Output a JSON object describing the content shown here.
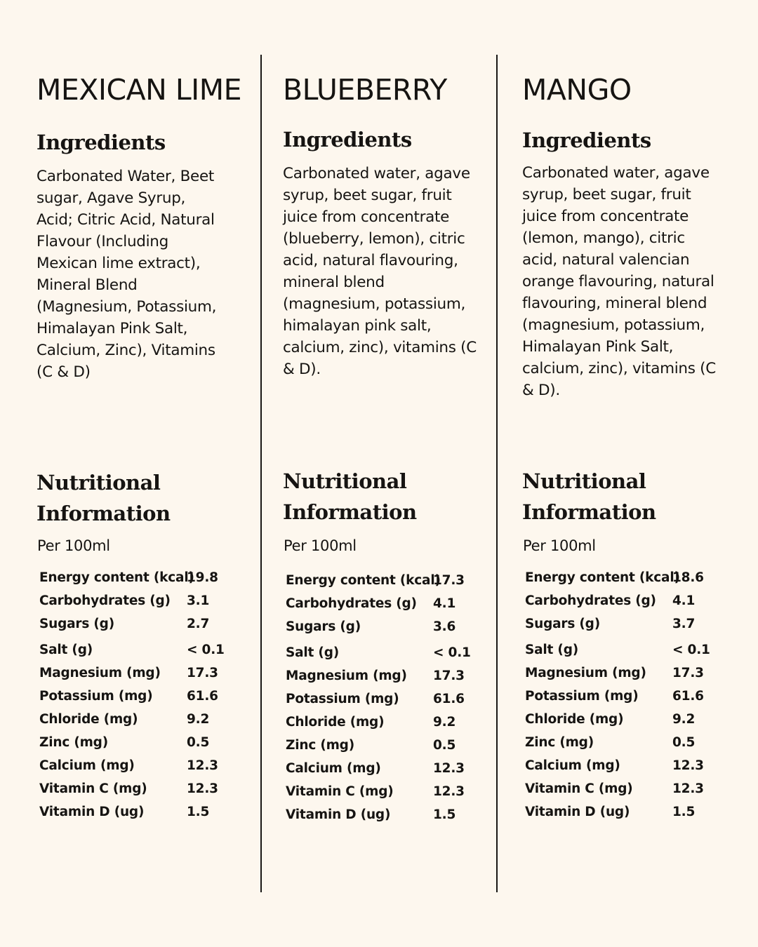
{
  "colors": {
    "background": "#fdf7ee",
    "text": "#161412",
    "divider": "#1a1816"
  },
  "products": [
    {
      "title": "MEXICAN LIME",
      "ingredients_heading": "Ingredients",
      "ingredients_lines": [
        "Carbonated Water, Beet",
        "sugar, Agave Syrup,",
        "Acid; Citric Acid, Natural",
        "Flavour (Including",
        "Mexican lime extract),",
        "Mineral Blend",
        "(Magnesium, Potassium,",
        "Himalayan Pink Salt,",
        "Calcium, Zinc), Vitamins",
        "(C & D)"
      ],
      "nutrition_heading_lines": [
        "Nutritional",
        "Information"
      ],
      "per": "Per 100ml",
      "rows": [
        {
          "label": "Energy content (kcal)",
          "value": "19.8"
        },
        {
          "label": "Carbohydrates (g)",
          "value": "3.1"
        },
        {
          "label": "Sugars (g)",
          "value": "2.7"
        },
        {
          "label": "Salt (g)",
          "value": "< 0.1"
        },
        {
          "label": "Magnesium (mg)",
          "value": "17.3"
        },
        {
          "label": "Potassium (mg)",
          "value": "61.6"
        },
        {
          "label": "Chloride (mg)",
          "value": "9.2"
        },
        {
          "label": "Zinc (mg)",
          "value": "0.5"
        },
        {
          "label": "Calcium (mg)",
          "value": "12.3"
        },
        {
          "label": "Vitamin C (mg)",
          "value": "12.3"
        },
        {
          "label": "Vitamin D (ug)",
          "value": "1.5"
        }
      ]
    },
    {
      "title": "BLUEBERRY",
      "ingredients_heading": "Ingredients",
      "ingredients_lines": [
        "Carbonated water, agave",
        "syrup, beet sugar, fruit",
        "juice from concentrate",
        "(blueberry, lemon), citric",
        "acid, natural flavouring,",
        "mineral blend",
        "(magnesium, potassium,",
        "himalayan pink salt,",
        "calcium, zinc), vitamins (C",
        "& D)."
      ],
      "nutrition_heading_lines": [
        "Nutritional",
        "Information"
      ],
      "per": "Per 100ml",
      "rows": [
        {
          "label": "Energy content (kcal)",
          "value": "17.3"
        },
        {
          "label": "Carbohydrates (g)",
          "value": "4.1"
        },
        {
          "label": "Sugars (g)",
          "value": "3.6"
        },
        {
          "label": "Salt (g)",
          "value": "< 0.1"
        },
        {
          "label": "Magnesium (mg)",
          "value": "17.3"
        },
        {
          "label": "Potassium (mg)",
          "value": "61.6"
        },
        {
          "label": "Chloride (mg)",
          "value": "9.2"
        },
        {
          "label": "Zinc (mg)",
          "value": "0.5"
        },
        {
          "label": "Calcium (mg)",
          "value": "12.3"
        },
        {
          "label": "Vitamin C (mg)",
          "value": "12.3"
        },
        {
          "label": "Vitamin D (ug)",
          "value": "1.5"
        }
      ]
    },
    {
      "title": "MANGO",
      "ingredients_heading": "Ingredients",
      "ingredients_lines": [
        "Carbonated water, agave",
        "syrup, beet sugar, fruit",
        "juice from concentrate",
        "(lemon, mango), citric",
        "acid, natural valencian",
        "orange flavouring, natural",
        "flavouring, mineral blend",
        "(magnesium, potassium,",
        "Himalayan Pink Salt,",
        "calcium, zinc), vitamins (C",
        "& D)."
      ],
      "nutrition_heading_lines": [
        "Nutritional",
        "Information"
      ],
      "per": "Per 100ml",
      "rows": [
        {
          "label": "Energy content (kcal)",
          "value": "18.6"
        },
        {
          "label": "Carbohydrates (g)",
          "value": "4.1"
        },
        {
          "label": "Sugars (g)",
          "value": "3.7"
        },
        {
          "label": "Salt (g)",
          "value": "< 0.1"
        },
        {
          "label": "Magnesium (mg)",
          "value": "17.3"
        },
        {
          "label": "Potassium (mg)",
          "value": "61.6"
        },
        {
          "label": "Chloride (mg)",
          "value": "9.2"
        },
        {
          "label": "Zinc (mg)",
          "value": "0.5"
        },
        {
          "label": "Calcium (mg)",
          "value": "12.3"
        },
        {
          "label": "Vitamin C (mg)",
          "value": "12.3"
        },
        {
          "label": "Vitamin D (ug)",
          "value": "1.5"
        }
      ]
    }
  ]
}
